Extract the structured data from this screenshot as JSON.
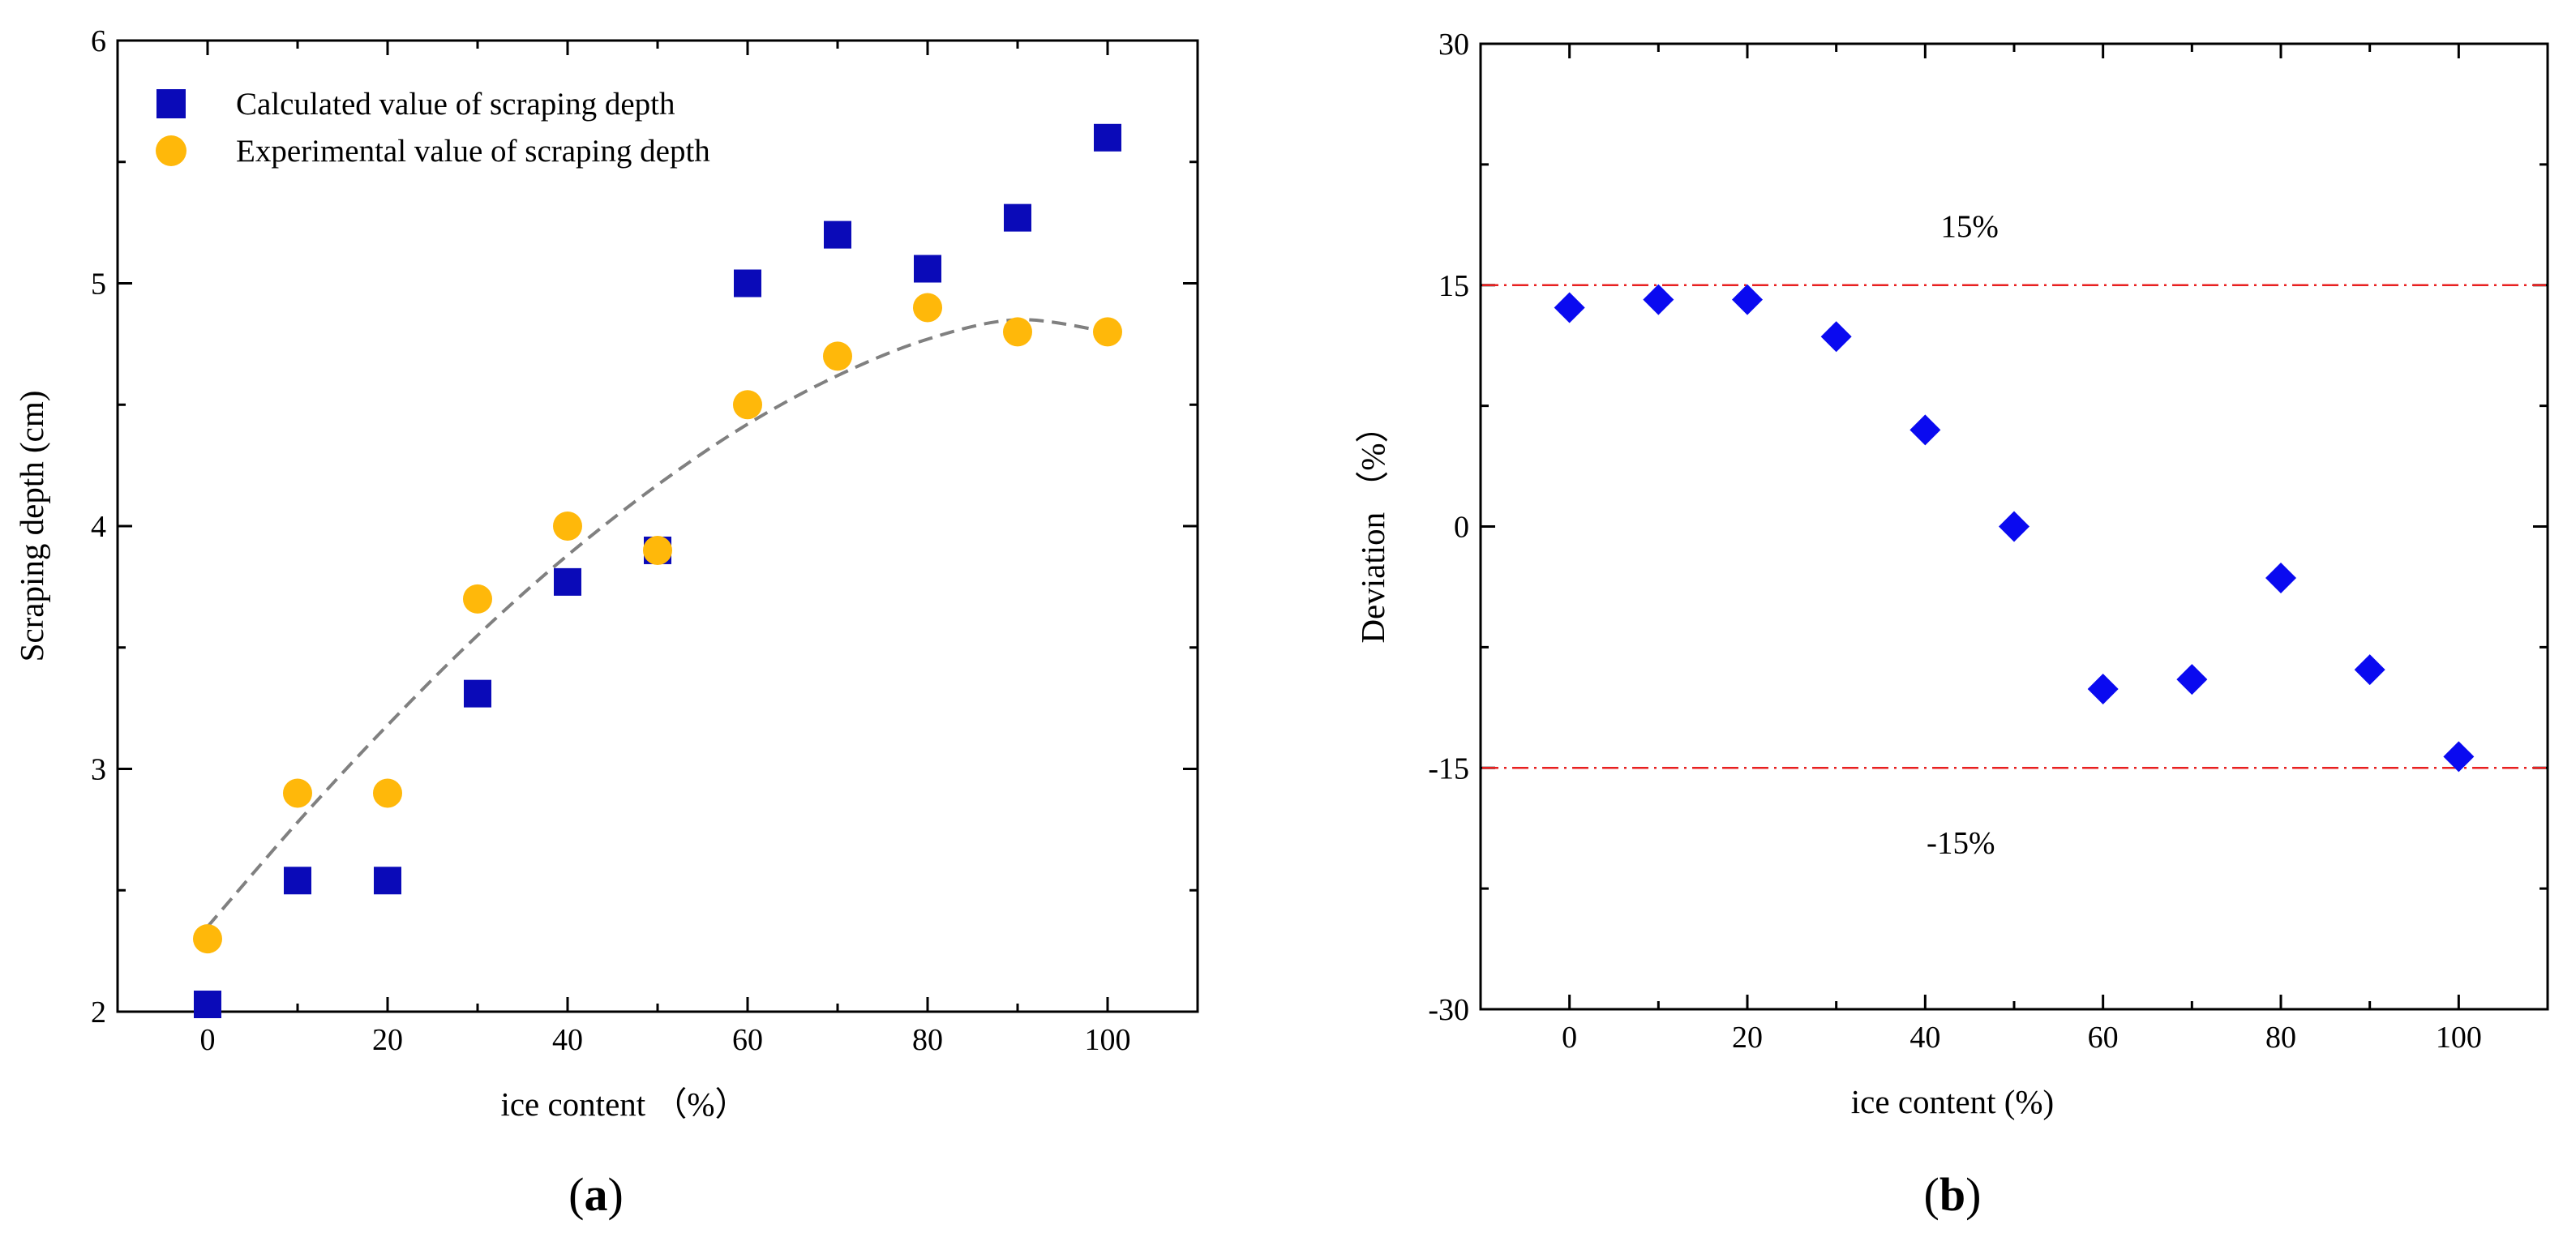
{
  "chart_data": [
    {
      "panel": "(a)",
      "panel_letter": "a",
      "type": "scatter",
      "title": "",
      "xlabel": "ice content （%）",
      "ylabel": "Scraping depth (cm)",
      "xlim": [
        -10,
        110
      ],
      "ylim": [
        2,
        6
      ],
      "xticks": [
        0,
        20,
        40,
        60,
        80,
        100
      ],
      "yticks": [
        2,
        3,
        4,
        5,
        6
      ],
      "grid": false,
      "legend_position": "top-left",
      "series": [
        {
          "name": "Calculated value of scraping depth",
          "marker": "square",
          "color": "#0A0AB8",
          "x": [
            0,
            10,
            20,
            30,
            40,
            50,
            60,
            70,
            80,
            90,
            100
          ],
          "y": [
            2.03,
            2.54,
            2.54,
            3.31,
            3.77,
            3.9,
            5.0,
            5.2,
            5.06,
            5.27,
            5.6
          ]
        },
        {
          "name": " Experimental value of scraping depth",
          "marker": "circle",
          "color": "#FFB80A",
          "x": [
            0,
            10,
            20,
            30,
            40,
            50,
            60,
            70,
            80,
            90,
            100
          ],
          "y": [
            2.3,
            2.9,
            2.9,
            3.7,
            4.0,
            3.9,
            4.5,
            4.7,
            4.9,
            4.8,
            4.8
          ]
        }
      ],
      "trend_line": {
        "style": "dashed",
        "color": "#808080",
        "x": [
          0,
          10,
          20,
          30,
          40,
          50,
          60,
          70,
          80,
          90,
          100
        ],
        "y": [
          2.35,
          2.78,
          3.18,
          3.55,
          3.88,
          4.17,
          4.42,
          4.62,
          4.77,
          4.85,
          4.8
        ]
      }
    },
    {
      "panel": "(b)",
      "panel_letter": "b",
      "type": "scatter",
      "title": "",
      "xlabel": "ice content (%)",
      "ylabel": "Deviation （%）",
      "xlim": [
        -10,
        110
      ],
      "ylim": [
        -30,
        30
      ],
      "xticks": [
        0,
        20,
        40,
        60,
        80,
        100
      ],
      "yticks": [
        -30,
        -15,
        0,
        15,
        30
      ],
      "grid": false,
      "series": [
        {
          "name": "",
          "marker": "diamond",
          "color": "#0A0AF0",
          "x": [
            0,
            10,
            20,
            30,
            40,
            50,
            60,
            70,
            80,
            90,
            100
          ],
          "y": [
            13.6,
            14.1,
            14.1,
            11.8,
            6.0,
            0.0,
            -10.1,
            -9.5,
            -3.2,
            -8.9,
            -14.3
          ]
        }
      ],
      "reference_lines": [
        {
          "y": 15,
          "label": "15%",
          "style": "dashdot",
          "color": "#E82020"
        },
        {
          "y": -15,
          "label": "-15%",
          "style": "dashdot",
          "color": "#E82020"
        }
      ]
    }
  ]
}
